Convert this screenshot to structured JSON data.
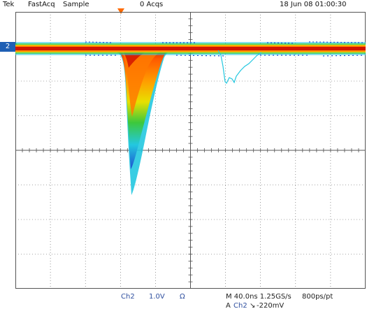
{
  "header": {
    "brand": "Tek",
    "mode": "FastAcq",
    "acq_mode": "Sample",
    "acq_count": "0 Acqs",
    "datetime": "18 Jun 08 01:00:30"
  },
  "channel_marker": {
    "label": "2",
    "color": "#1f5fb4"
  },
  "trigger_marker_color": "#ff6a00",
  "footer": {
    "channel": "Ch2",
    "volts_per_div": "1.0V",
    "coupling_symbol": "Ω",
    "timebase": "M 40.0ns 1.25GS/s",
    "resolution": "800ps/pt",
    "trigger_prefix": "A",
    "trigger_source": "Ch2",
    "trigger_slope_symbol": "↘",
    "trigger_level": "-220mV"
  },
  "colors": {
    "grid": "#555555",
    "persistence_hot": "#d21400",
    "persistence_warm": "#ff8a00",
    "persistence_mid": "#f5d800",
    "persistence_cool": "#3cc83c",
    "persistence_cold": "#23c8e0",
    "persistence_coldest": "#1e50d0"
  }
}
